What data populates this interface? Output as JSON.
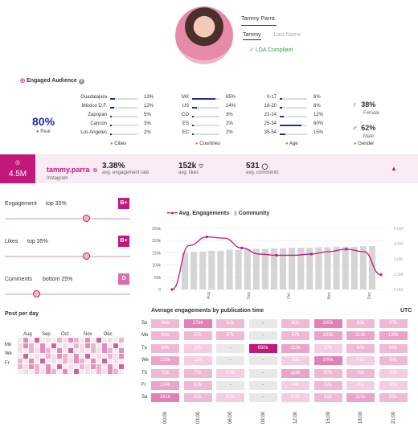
{
  "profile": {
    "name": "Tammy Parra",
    "tab_active": "Tammy",
    "tab_inactive": "Last Name",
    "compliance": "LDA Compliant"
  },
  "audience": {
    "title": "Engaged Audience",
    "real_pct": "80%",
    "real_label": "Real",
    "cities": [
      {
        "name": "Guadalajara",
        "pct": "13%",
        "v": 13
      },
      {
        "name": "México D.F.",
        "pct": "12%",
        "v": 12
      },
      {
        "name": "Zapopan",
        "pct": "5%",
        "v": 5
      },
      {
        "name": "Cancún",
        "pct": "3%",
        "v": 3
      },
      {
        "name": "Los Angeles",
        "pct": "2%",
        "v": 2
      }
    ],
    "countries": [
      {
        "name": "MX",
        "pct": "65%",
        "v": 65
      },
      {
        "name": "US",
        "pct": "14%",
        "v": 14
      },
      {
        "name": "CO",
        "pct": "3%",
        "v": 3
      },
      {
        "name": "ES",
        "pct": "2%",
        "v": 2
      },
      {
        "name": "EC",
        "pct": "2%",
        "v": 2
      }
    ],
    "ages": [
      {
        "name": "0-17",
        "pct": "6%",
        "v": 6
      },
      {
        "name": "18-20",
        "pct": "6%",
        "v": 6
      },
      {
        "name": "21-24",
        "pct": "12%",
        "v": 12
      },
      {
        "name": "25-34",
        "pct": "60%",
        "v": 60
      },
      {
        "name": "35-54",
        "pct": "15%",
        "v": 15
      }
    ],
    "cities_label": "Cities",
    "countries_label": "Countries",
    "age_label": "Age",
    "gender_label": "Gender",
    "female_pct": "38%",
    "female_label": "Female",
    "male_pct": "62%",
    "male_label": "Male"
  },
  "stats": {
    "followers": "4.5M",
    "handle": "tammy.parra",
    "platform": "Instagram",
    "engagement_rate": "3.38%",
    "engagement_rate_label": "avg. engagement rate",
    "likes": "152k",
    "likes_label": "avg. likes",
    "comments": "531",
    "comments_label": "avg. comments"
  },
  "sliders": [
    {
      "label": "Engagement",
      "value": "top 35%",
      "grade": "B+",
      "pos": 0.65
    },
    {
      "label": "Likes",
      "value": "top 35%",
      "grade": "B+",
      "pos": 0.65
    },
    {
      "label": "Comments",
      "value": "bottom 25%",
      "grade": "D",
      "pos": 0.25
    }
  ],
  "post_per_day": {
    "title": "Post per day",
    "months": [
      "Aug",
      "Sep",
      "Oct",
      "Nov",
      "Dec"
    ],
    "days": [
      "Mo",
      "We",
      "Fr"
    ]
  },
  "chart_data": {
    "type": "bar",
    "legend": [
      "Avg. Engagements",
      "Community"
    ],
    "yticks_left": [
      "250k",
      "200k",
      "150k",
      "100k",
      "50k",
      "0"
    ],
    "yticks_right": [
      "6.0M",
      "4.5M",
      "3.0M",
      "1.5M",
      "0.0M"
    ],
    "xticks": [
      "Aug",
      "Sep",
      "Oct",
      "Nov",
      "Dec"
    ],
    "community": [
      3.6,
      3.7,
      3.7,
      3.8,
      3.8,
      3.9,
      3.9,
      3.95,
      4.0,
      4.0,
      4.05,
      4.05,
      4.1,
      4.1,
      4.1,
      4.15,
      4.15,
      4.2,
      4.2,
      4.2,
      4.25,
      4.25
    ],
    "engagements": [
      0,
      180,
      215,
      210,
      170,
      145,
      140,
      140,
      145,
      155,
      165,
      155,
      60
    ]
  },
  "heatmap": {
    "title": "Average engagements by publication time",
    "tz": "UTC",
    "days": [
      "Su",
      "Mo",
      "Tu",
      "We",
      "Th",
      "Fr",
      "Sa"
    ],
    "hours": [
      "00:00",
      "03:00",
      "06:00",
      "09:00",
      "12:00",
      "15:00",
      "18:00",
      "21:00"
    ],
    "values": [
      [
        "66k",
        "278k",
        "62k",
        "-",
        "60k",
        "205k",
        "69k",
        "97k"
      ],
      [
        "84k",
        "87k",
        "87k",
        "-",
        "67k",
        "103k",
        "113k",
        "128k"
      ],
      [
        "64k",
        "36k",
        "-",
        "650k",
        "113k",
        "37k",
        "64k",
        "66k"
      ],
      [
        "133k",
        "11k",
        "-",
        "-",
        "20k",
        "206k",
        "47k",
        "54k"
      ],
      [
        "72k",
        "75k",
        "9.4k",
        "-",
        "119k",
        "87k",
        "76k",
        "40k"
      ],
      [
        "124k",
        "67k",
        "-",
        "-",
        "44k",
        "52k",
        "45k",
        "43k"
      ],
      [
        "261k",
        "83k",
        "6.1k",
        "-",
        "3.4k",
        "68k",
        "110k",
        "69k"
      ]
    ]
  }
}
